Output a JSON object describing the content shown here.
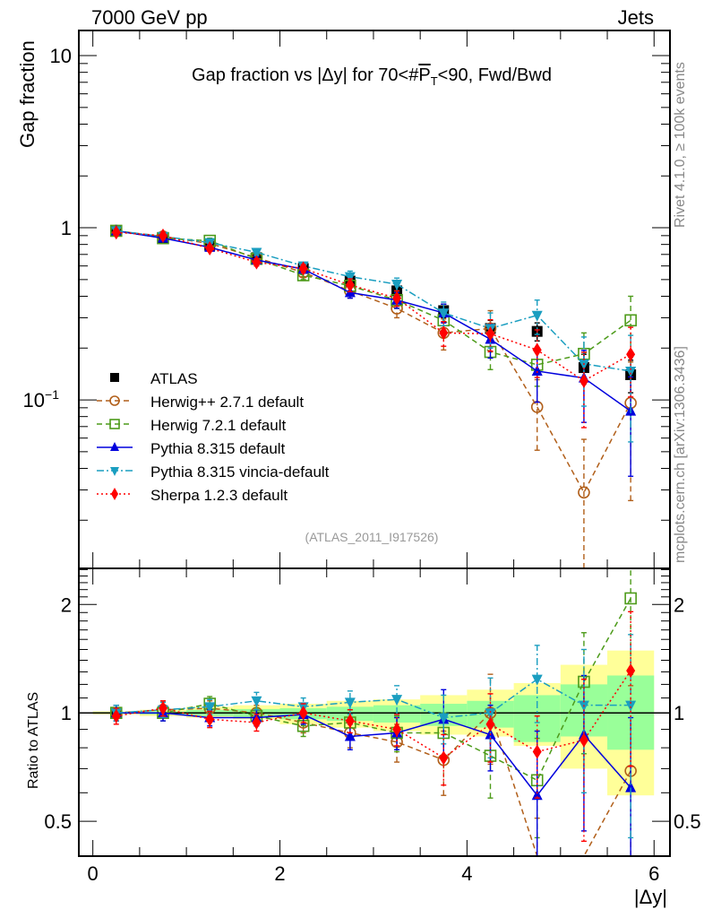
{
  "header": {
    "left": "7000 GeV pp",
    "right": "Jets"
  },
  "side_text": {
    "rivet": "Rivet 4.1.0, ≥ 100k events",
    "mcplots": "mcplots.cern.ch [arXiv:1306.3436]"
  },
  "chart_data": [
    {
      "type": "line",
      "panel": "main",
      "title": "Gap fraction vs |Δy| for 70<#P̅T<90, Fwd/Bwd",
      "title_parts": {
        "pre": "Gap fraction vs |Δy| for 70<#",
        "p": "P",
        "sub": "T",
        "post": "<90, Fwd/Bwd"
      },
      "ylabel": "Gap fraction",
      "xlabel": "|Δy|",
      "yscale": "log",
      "ylim": [
        0.0105,
        14.0
      ],
      "xlim": [
        -0.15,
        6.17
      ],
      "yticks": [
        {
          "v": 10,
          "label": "10"
        },
        {
          "v": 1,
          "label": "1"
        },
        {
          "v": 0.1,
          "label": "10",
          "sup": "−1"
        }
      ],
      "annotation": "(ATLAS_2011_I917526)",
      "x": [
        0.25,
        0.75,
        1.25,
        1.75,
        2.25,
        2.75,
        3.25,
        3.75,
        4.25,
        4.75,
        5.25,
        5.75
      ],
      "legend_position": "middle-left",
      "series": [
        {
          "name": "ATLAS",
          "color": "#000000",
          "marker": "square",
          "line": "none",
          "values": [
            0.96,
            0.87,
            0.79,
            0.67,
            0.58,
            0.49,
            0.43,
            0.33,
            0.26,
            0.25,
            0.154,
            0.14
          ],
          "err": [
            0.03,
            0.03,
            0.03,
            0.03,
            0.03,
            0.03,
            0.03,
            0.03,
            0.03,
            0.03,
            0.03,
            0.03
          ]
        },
        {
          "name": "Herwig++ 2.7.1 default",
          "color": "#b15f1a",
          "marker": "circle-open",
          "line": "dashed",
          "values": [
            0.96,
            0.89,
            0.81,
            0.67,
            0.55,
            0.43,
            0.34,
            0.245,
            0.26,
            0.091,
            0.029,
            0.096
          ],
          "err": [
            0.03,
            0.03,
            0.03,
            0.03,
            0.03,
            0.04,
            0.04,
            0.05,
            0.07,
            0.04,
            0.03,
            0.07
          ]
        },
        {
          "name": "Herwig 7.2.1 default",
          "color": "#4d9b1a",
          "marker": "square-open",
          "line": "dashed",
          "values": [
            0.96,
            0.87,
            0.84,
            0.66,
            0.53,
            0.46,
            0.38,
            0.29,
            0.19,
            0.16,
            0.185,
            0.29
          ],
          "err": [
            0.03,
            0.03,
            0.03,
            0.03,
            0.03,
            0.04,
            0.04,
            0.04,
            0.04,
            0.04,
            0.06,
            0.11
          ]
        },
        {
          "name": "Pythia 8.315 default",
          "color": "#0000dd",
          "marker": "triangle-up",
          "line": "solid",
          "values": [
            0.96,
            0.87,
            0.77,
            0.65,
            0.575,
            0.42,
            0.38,
            0.32,
            0.225,
            0.147,
            0.134,
            0.086
          ],
          "err": [
            0.03,
            0.03,
            0.03,
            0.03,
            0.03,
            0.03,
            0.04,
            0.04,
            0.05,
            0.05,
            0.06,
            0.05
          ]
        },
        {
          "name": "Pythia 8.315 vincia-default",
          "color": "#1a9ec0",
          "marker": "triangle-down",
          "line": "dashdot",
          "values": [
            0.96,
            0.89,
            0.82,
            0.72,
            0.6,
            0.52,
            0.47,
            0.32,
            0.26,
            0.31,
            0.162,
            0.147
          ],
          "err": [
            0.03,
            0.03,
            0.03,
            0.03,
            0.03,
            0.04,
            0.04,
            0.05,
            0.06,
            0.07,
            0.07,
            0.09
          ]
        },
        {
          "name": "Sherpa 1.2.3 default",
          "color": "#ff0000",
          "marker": "diamond",
          "line": "dotted",
          "values": [
            0.94,
            0.9,
            0.76,
            0.63,
            0.58,
            0.465,
            0.39,
            0.245,
            0.242,
            0.195,
            0.129,
            0.184
          ],
          "err": [
            0.03,
            0.03,
            0.03,
            0.03,
            0.03,
            0.04,
            0.04,
            0.04,
            0.05,
            0.06,
            0.06,
            0.08
          ]
        }
      ]
    },
    {
      "type": "line",
      "panel": "ratio",
      "ylabel": "Ratio to ATLAS",
      "xlabel": "|Δy|",
      "yscale": "log",
      "ylim": [
        0.4,
        2.52
      ],
      "xlim": [
        -0.15,
        6.17
      ],
      "yticks": [
        {
          "v": 2,
          "label": "2"
        },
        {
          "v": 1,
          "label": "1"
        },
        {
          "v": 0.5,
          "label": "0.5"
        }
      ],
      "xticks": [
        {
          "v": 0,
          "label": "0"
        },
        {
          "v": 2,
          "label": "2"
        },
        {
          "v": 4,
          "label": "4"
        },
        {
          "v": 6,
          "label": "6"
        }
      ],
      "x": [
        0.25,
        0.75,
        1.25,
        1.75,
        2.25,
        2.75,
        3.25,
        3.75,
        4.25,
        4.75,
        5.25,
        5.75
      ],
      "bands": {
        "bin_edges": [
          0,
          0.5,
          1,
          1.5,
          2,
          2.5,
          3,
          3.5,
          4,
          4.5,
          5,
          5.5,
          6
        ],
        "yellow_color": "#ffff99",
        "green_color": "#99ff99",
        "yellow_hi": [
          1.01,
          1.02,
          1.04,
          1.05,
          1.06,
          1.08,
          1.09,
          1.12,
          1.16,
          1.21,
          1.36,
          1.49
        ],
        "yellow_lo": [
          0.99,
          0.98,
          0.97,
          0.96,
          0.93,
          0.91,
          0.89,
          0.87,
          0.86,
          0.81,
          0.7,
          0.59
        ],
        "green_hi": [
          1.005,
          1.01,
          1.02,
          1.025,
          1.03,
          1.04,
          1.05,
          1.06,
          1.08,
          1.12,
          1.2,
          1.27
        ],
        "green_lo": [
          0.995,
          0.99,
          0.98,
          0.975,
          0.96,
          0.95,
          0.94,
          0.92,
          0.91,
          0.83,
          0.86,
          0.79
        ]
      },
      "series": [
        {
          "name": "Herwig++ 2.7.1 default",
          "color": "#b15f1a",
          "marker": "circle-open",
          "line": "dashed",
          "values": [
            1.0,
            1.02,
            1.03,
            1.0,
            0.94,
            0.88,
            0.83,
            0.74,
            1.0,
            0.36,
            0.19,
            0.69
          ],
          "err": [
            0.05,
            0.05,
            0.05,
            0.05,
            0.06,
            0.08,
            0.1,
            0.15,
            0.28,
            0.15,
            0.2,
            0.5
          ]
        },
        {
          "name": "Herwig 7.2.1 default",
          "color": "#4d9b1a",
          "marker": "square-open",
          "line": "dashed",
          "values": [
            1.0,
            1.0,
            1.06,
            0.98,
            0.92,
            0.94,
            0.88,
            0.88,
            0.76,
            0.65,
            1.22,
            2.08
          ],
          "err": [
            0.05,
            0.05,
            0.05,
            0.05,
            0.06,
            0.08,
            0.1,
            0.12,
            0.18,
            0.2,
            0.45,
            0.8
          ]
        },
        {
          "name": "Pythia 8.315 default",
          "color": "#0000dd",
          "marker": "triangle-up",
          "line": "solid",
          "values": [
            1.0,
            1.0,
            0.97,
            0.97,
            0.99,
            0.86,
            0.88,
            0.96,
            0.87,
            0.59,
            0.87,
            0.62
          ],
          "err": [
            0.05,
            0.05,
            0.05,
            0.05,
            0.06,
            0.07,
            0.09,
            0.2,
            0.18,
            0.3,
            0.4,
            0.35
          ]
        },
        {
          "name": "Pythia 8.315 vincia-default",
          "color": "#1a9ec0",
          "marker": "triangle-down",
          "line": "dashdot",
          "values": [
            1.0,
            1.02,
            1.04,
            1.08,
            1.04,
            1.07,
            1.09,
            0.97,
            1.0,
            1.24,
            1.05,
            1.05
          ],
          "err": [
            0.05,
            0.05,
            0.05,
            0.06,
            0.06,
            0.08,
            0.1,
            0.15,
            0.25,
            0.3,
            0.45,
            0.6
          ]
        },
        {
          "name": "Sherpa 1.2.3 default",
          "color": "#ff0000",
          "marker": "diamond",
          "line": "dotted",
          "values": [
            0.98,
            1.03,
            0.96,
            0.94,
            1.0,
            0.95,
            0.9,
            0.75,
            0.93,
            0.78,
            0.84,
            1.31
          ],
          "err": [
            0.05,
            0.05,
            0.05,
            0.05,
            0.06,
            0.07,
            0.09,
            0.12,
            0.2,
            0.2,
            0.4,
            0.6
          ]
        }
      ]
    }
  ]
}
